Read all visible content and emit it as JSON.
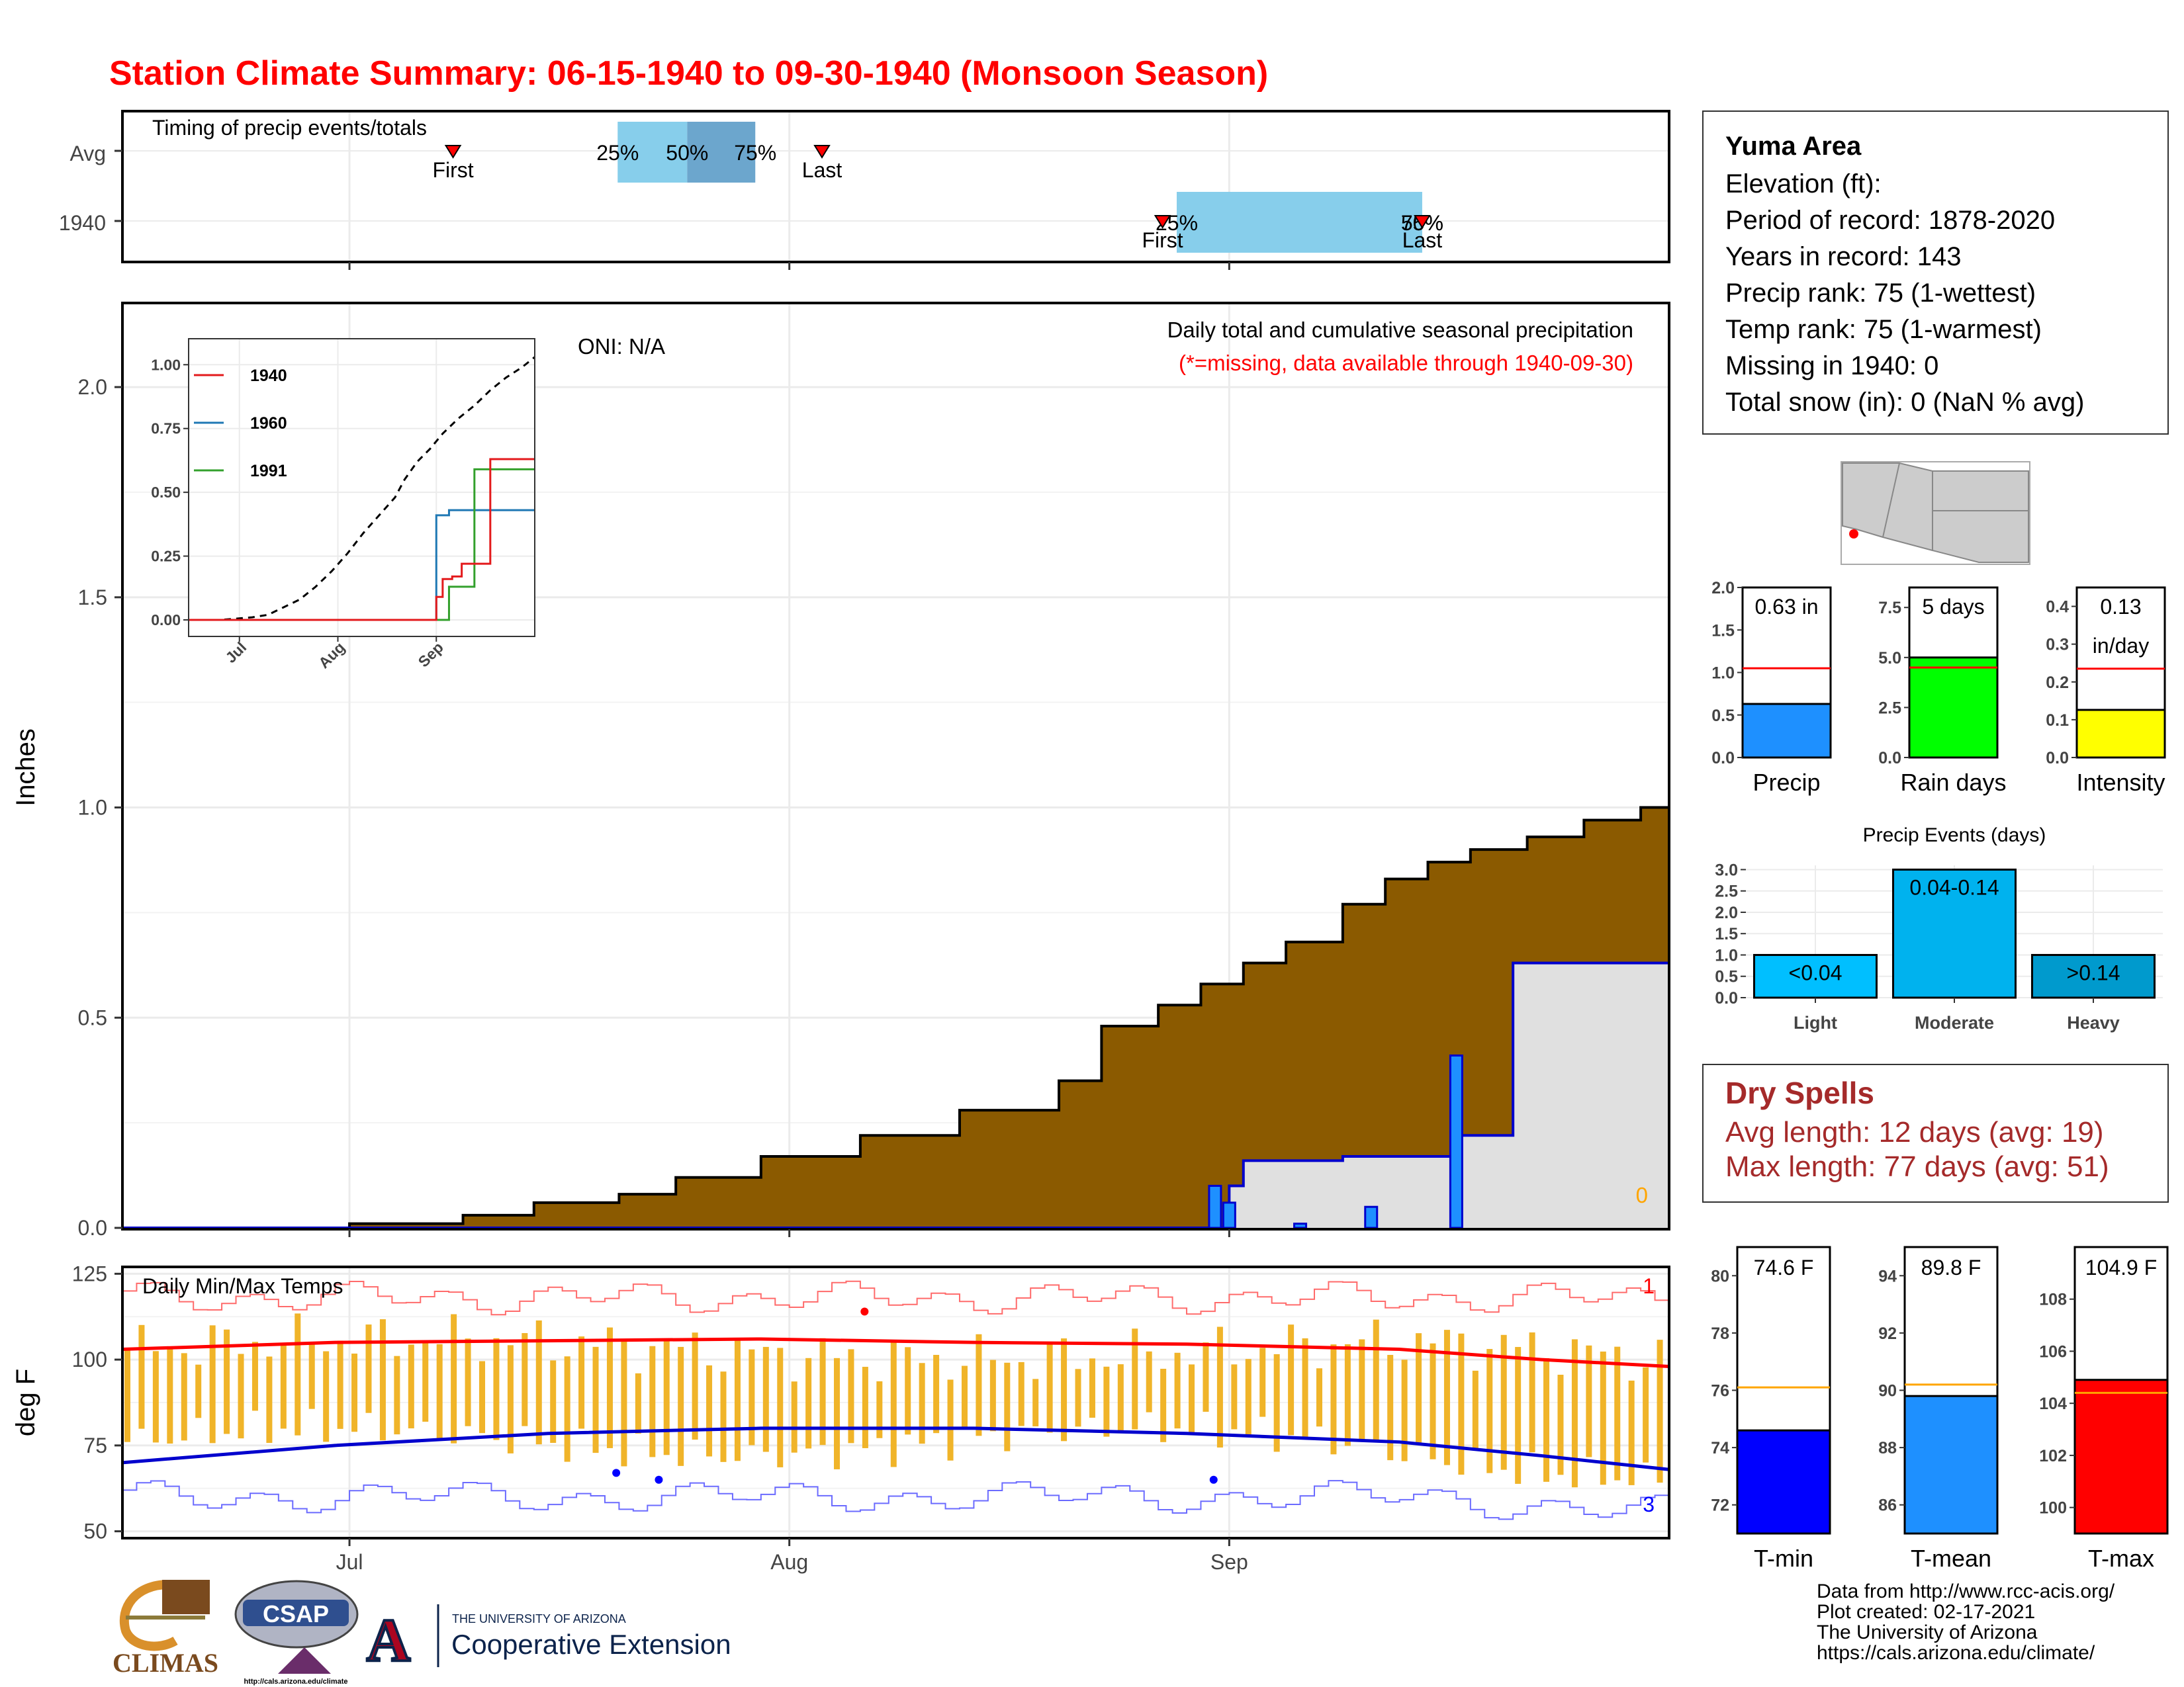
{
  "title": "Station Climate Summary: 06-15-1940 to 09-30-1940 (Monsoon Season)",
  "timing": {
    "title": "Timing of precip events/totals",
    "rows": [
      "Avg",
      "1940"
    ],
    "avg": {
      "first_label": "First",
      "last_label": "Last",
      "first": 23.3,
      "last": 49.3,
      "p25": 34.9,
      "p50": 39.8,
      "p75": 44.6,
      "p25_label": "25%",
      "p50_label": "50%",
      "p75_label": "75%"
    },
    "y1940": {
      "first_label": "First",
      "last_label": "Last",
      "first": 73.3,
      "last": 91.6,
      "p25": 74.3,
      "p50": 91.6,
      "p75": 91.6,
      "p25_label": "25%",
      "p50_label": "50%",
      "p75_label": "75%"
    }
  },
  "info": {
    "station": "Yuma Area",
    "lines": [
      "Elevation (ft):",
      "Period of record: 1878-2020",
      "Years in record: 143",
      "Precip rank: 75 (1-wettest)",
      "Temp rank: 75 (1-warmest)",
      "Missing in 1940: 0",
      "Total snow (in): 0 (NaN % avg)"
    ]
  },
  "precip_panel": {
    "ylabel": "Inches",
    "title": "Daily total and cumulative seasonal precipitation",
    "subtitle": "(*=missing, data available through 1940-09-30)",
    "oni": "ONI: N/A",
    "missing_count": "0",
    "colors": {
      "avg_cum": "#8b5a00",
      "year_fill": "#e0e0e0",
      "year_line": "#0000cd",
      "daily": "#1e90ff"
    }
  },
  "inset": {
    "series": [
      {
        "name": "1940",
        "color": "#e31a1c"
      },
      {
        "name": "1960",
        "color": "#1f78b4"
      },
      {
        "name": "1991",
        "color": "#33a02c"
      }
    ],
    "xticks": [
      "Jul",
      "Aug",
      "Sep"
    ],
    "yticks": [
      "0.00",
      "0.25",
      "0.50",
      "0.75",
      "1.00"
    ]
  },
  "mini_bars": [
    {
      "label": "Precip",
      "value_label": "0.63 in",
      "value": 0.63,
      "avg": 1.05,
      "ymax": 2.0,
      "yticks": [
        "0.0",
        "0.5",
        "1.0",
        "1.5",
        "2.0"
      ],
      "ytick_vals": [
        0,
        0.5,
        1.0,
        1.5,
        2.0
      ],
      "color": "#1e90ff"
    },
    {
      "label": "Rain days",
      "value_label": "5 days",
      "value": 5,
      "avg": 4.5,
      "ymax": 8.5,
      "yticks": [
        "0.0",
        "2.5",
        "5.0",
        "7.5"
      ],
      "ytick_vals": [
        0,
        2.5,
        5.0,
        7.5
      ],
      "color": "#00ff00"
    },
    {
      "label": "Intensity",
      "value_label": "0.13",
      "value_label2": "in/day",
      "value": 0.126,
      "avg": 0.235,
      "ymax": 0.45,
      "yticks": [
        "0.0",
        "0.1",
        "0.2",
        "0.3",
        "0.4"
      ],
      "ytick_vals": [
        0,
        0.1,
        0.2,
        0.3,
        0.4
      ],
      "color": "#ffff00"
    }
  ],
  "events": {
    "title": "Precip Events (days)",
    "categories": [
      "Light",
      "Moderate",
      "Heavy"
    ],
    "bar_labels": [
      "<0.04",
      "0.04-0.14",
      ">0.14"
    ],
    "values": [
      1,
      3,
      1
    ],
    "colors": [
      "#00bfff",
      "#00b2ee",
      "#009acd"
    ],
    "yticks": [
      "0.0",
      "0.5",
      "1.0",
      "1.5",
      "2.0",
      "2.5",
      "3.0"
    ]
  },
  "dry_spells": {
    "title": "Dry Spells",
    "avg_length": "Avg length: 12 days (avg: 19)",
    "max_length": "Max length: 77 days (avg: 51)"
  },
  "temp_panel": {
    "title": "Daily Min/Max Temps",
    "ylabel": "deg F",
    "count_high": "1",
    "count_low": "3",
    "yticks": [
      "50",
      "75",
      "100",
      "125"
    ],
    "colors": {
      "bars": "#f0b429",
      "avg_max": "#ff0000",
      "avg_min": "#0000cd"
    }
  },
  "temp_bars": [
    {
      "label": "T-min",
      "value_label": "74.6 F",
      "value": 74.6,
      "avg": 76.1,
      "ymin": 71,
      "ymax": 81,
      "yticks": [
        "72",
        "74",
        "76",
        "78",
        "80"
      ],
      "ytick_vals": [
        72,
        74,
        76,
        78,
        80
      ],
      "color": "#0000ff"
    },
    {
      "label": "T-mean",
      "value_label": "89.8 F",
      "value": 89.8,
      "avg": 90.2,
      "ymin": 85,
      "ymax": 95,
      "yticks": [
        "86",
        "88",
        "90",
        "92",
        "94"
      ],
      "ytick_vals": [
        86,
        88,
        90,
        92,
        94
      ],
      "color": "#1e90ff"
    },
    {
      "label": "T-max",
      "value_label": "104.9 F",
      "value": 104.9,
      "avg": 104.4,
      "ymin": 99,
      "ymax": 110,
      "yticks": [
        "100",
        "102",
        "104",
        "106",
        "108"
      ],
      "ytick_vals": [
        100,
        102,
        104,
        106,
        108
      ],
      "color": "#ff0000"
    }
  ],
  "xaxis": {
    "ticks": [
      "Jul",
      "Aug",
      "Sep"
    ],
    "tick_days": [
      16,
      47,
      78
    ]
  },
  "footer": [
    "Data from http://www.rcc-acis.org/",
    "Plot created: 02-17-2021",
    "The University of Arizona",
    "https://cals.arizona.edu/climate/"
  ],
  "logos": {
    "climas": "CLIMAS",
    "csap": "CSAP",
    "csap_url": "http://cals.arizona.edu/climate",
    "ua_top": "THE UNIVERSITY OF ARIZONA",
    "ua_bottom": "Cooperative Extension",
    "ua_letter": "A"
  },
  "chart_data": [
    {
      "type": "area",
      "title": "Daily total and cumulative seasonal precipitation",
      "ylabel": "Inches",
      "x_start": "1940-06-15",
      "x_end": "1940-09-30",
      "ylim": [
        0,
        2.2
      ],
      "series": [
        {
          "name": "Avg cumulative",
          "x": [
            0,
            16,
            24,
            29,
            35,
            39,
            45,
            52,
            59,
            66,
            69,
            73,
            76,
            79,
            82,
            86,
            89,
            92,
            95,
            99,
            103,
            107,
            109
          ],
          "values": [
            0.0,
            0.01,
            0.03,
            0.06,
            0.08,
            0.12,
            0.17,
            0.22,
            0.28,
            0.35,
            0.48,
            0.53,
            0.58,
            0.63,
            0.68,
            0.77,
            0.83,
            0.87,
            0.9,
            0.93,
            0.97,
            1.0,
            1.05
          ]
        },
        {
          "name": "1940 cumulative",
          "x": [
            0,
            77,
            78,
            79,
            83,
            86,
            94,
            95,
            98,
            108,
            109
          ],
          "values": [
            0.0,
            0.0,
            0.1,
            0.16,
            0.16,
            0.17,
            0.22,
            0.22,
            0.63,
            0.63,
            0.63
          ]
        },
        {
          "name": "1940 daily",
          "x": [
            77,
            78,
            83,
            88,
            94
          ],
          "values": [
            0.1,
            0.06,
            0.01,
            0.05,
            0.41
          ]
        }
      ]
    },
    {
      "type": "line",
      "title": "Daily Min/Max Temps",
      "ylabel": "deg F",
      "ylim": [
        48,
        127
      ],
      "series": [
        {
          "name": "Avg max",
          "x": [
            0,
            15,
            30,
            45,
            60,
            75,
            90,
            100,
            109
          ],
          "values": [
            103,
            105,
            105.5,
            106,
            105,
            104.5,
            103,
            100,
            98
          ]
        },
        {
          "name": "Avg min",
          "x": [
            0,
            15,
            30,
            45,
            60,
            75,
            90,
            100,
            109
          ],
          "values": [
            70,
            75,
            78.5,
            80,
            80,
            78.5,
            76,
            72,
            68
          ]
        }
      ]
    }
  ]
}
